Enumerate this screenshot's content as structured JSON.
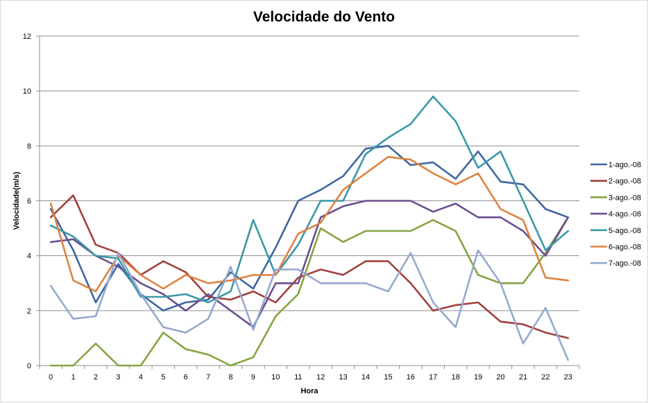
{
  "chart_data": {
    "type": "line",
    "title": "Velocidade do Vento",
    "xlabel": "Hora",
    "ylabel": "Velocidade(m/s)",
    "x": [
      0,
      1,
      2,
      3,
      4,
      5,
      6,
      7,
      8,
      9,
      10,
      11,
      12,
      13,
      14,
      15,
      16,
      17,
      18,
      19,
      20,
      21,
      22,
      23
    ],
    "ylim": [
      0,
      12
    ],
    "yticks": [
      0,
      2,
      4,
      6,
      8,
      10,
      12
    ],
    "grid": "horizontal",
    "legend": "right",
    "series": [
      {
        "name": "1-ago.-08",
        "color": "#3E66A0",
        "values": [
          5.7,
          4.2,
          2.3,
          3.7,
          2.6,
          2.0,
          2.3,
          2.4,
          3.4,
          2.8,
          4.3,
          6.0,
          6.4,
          6.9,
          7.9,
          8.0,
          7.3,
          7.4,
          6.8,
          7.8,
          6.7,
          6.6,
          5.7,
          5.4
        ]
      },
      {
        "name": "2-ago.-08",
        "color": "#A13F3C",
        "values": [
          5.4,
          6.2,
          4.4,
          4.1,
          3.3,
          3.8,
          3.4,
          2.5,
          2.4,
          2.7,
          2.3,
          3.2,
          3.5,
          3.3,
          3.8,
          3.8,
          3.0,
          2.0,
          2.2,
          2.3,
          1.6,
          1.5,
          1.2,
          1.0
        ]
      },
      {
        "name": "3-ago.-08",
        "color": "#85A441",
        "values": [
          0.0,
          0.0,
          0.8,
          0.0,
          0.0,
          1.2,
          0.6,
          0.4,
          0.0,
          0.3,
          1.8,
          2.6,
          5.0,
          4.5,
          4.9,
          4.9,
          4.9,
          5.3,
          4.9,
          3.3,
          3.0,
          3.0,
          4.1,
          5.4
        ]
      },
      {
        "name": "4-ago.-08",
        "color": "#6A4E8E",
        "values": [
          4.5,
          4.6,
          4.0,
          3.6,
          3.0,
          2.6,
          2.0,
          2.6,
          2.0,
          1.4,
          3.0,
          3.0,
          5.4,
          5.8,
          6.0,
          6.0,
          6.0,
          5.6,
          5.9,
          5.4,
          5.4,
          4.9,
          4.0,
          5.4
        ]
      },
      {
        "name": "5-ago.-08",
        "color": "#3A97A9",
        "values": [
          5.1,
          4.7,
          4.0,
          3.9,
          2.5,
          2.5,
          2.6,
          2.3,
          2.7,
          5.3,
          3.3,
          4.4,
          6.0,
          6.0,
          7.7,
          8.3,
          8.8,
          9.8,
          8.9,
          7.2,
          7.8,
          6.0,
          4.2,
          4.9
        ]
      },
      {
        "name": "6-ago.-08",
        "color": "#E0823E",
        "values": [
          5.9,
          3.1,
          2.7,
          4.0,
          3.3,
          2.8,
          3.3,
          3.0,
          3.1,
          3.3,
          3.3,
          4.8,
          5.2,
          6.4,
          7.0,
          7.6,
          7.5,
          7.0,
          6.6,
          7.0,
          5.7,
          5.3,
          3.2,
          3.1
        ]
      },
      {
        "name": "7-ago.-08",
        "color": "#93A9CF",
        "values": [
          2.9,
          1.7,
          1.8,
          4.1,
          2.6,
          1.4,
          1.2,
          1.7,
          3.6,
          1.3,
          3.5,
          3.5,
          3.0,
          3.0,
          3.0,
          2.7,
          4.1,
          2.3,
          1.4,
          4.2,
          3.0,
          0.8,
          2.1,
          0.2
        ]
      }
    ]
  }
}
